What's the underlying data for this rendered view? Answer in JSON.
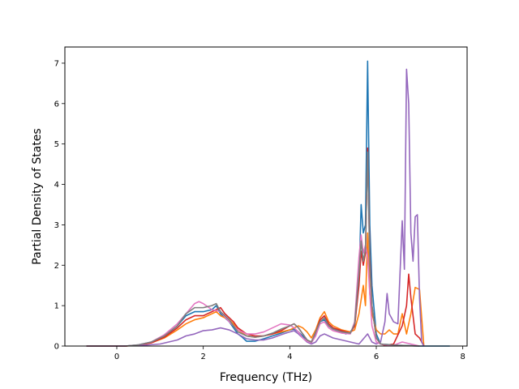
{
  "chart_data": {
    "type": "line",
    "title": "",
    "xlabel": "Frequency (THz)",
    "ylabel": "Partial Density of States",
    "xlim": [
      -1.2,
      8.1
    ],
    "ylim": [
      0,
      7.4
    ],
    "xticks": [
      0,
      2,
      4,
      6,
      8
    ],
    "yticks": [
      0,
      1,
      2,
      3,
      4,
      5,
      6,
      7
    ],
    "grid": false,
    "legend": "none",
    "series": [
      {
        "color": "#1f77b4",
        "x": [
          -0.7,
          0,
          0.2,
          0.5,
          0.8,
          1.1,
          1.4,
          1.6,
          1.8,
          2.0,
          2.2,
          2.3,
          2.4,
          2.5,
          2.6,
          2.7,
          2.8,
          2.9,
          3.0,
          3.2,
          3.4,
          3.6,
          3.8,
          4.0,
          4.1,
          4.2,
          4.3,
          4.4,
          4.5,
          4.6,
          4.7,
          4.8,
          4.9,
          5.0,
          5.1,
          5.2,
          5.3,
          5.4,
          5.5,
          5.6,
          5.65,
          5.7,
          5.75,
          5.8,
          5.85,
          5.9,
          6.0,
          6.1,
          6.5,
          7.0,
          7.7
        ],
        "y": [
          0,
          0,
          0,
          0.03,
          0.1,
          0.25,
          0.5,
          0.75,
          0.85,
          0.85,
          0.9,
          1.0,
          0.8,
          0.7,
          0.6,
          0.45,
          0.3,
          0.22,
          0.12,
          0.12,
          0.18,
          0.25,
          0.32,
          0.4,
          0.42,
          0.35,
          0.25,
          0.12,
          0.08,
          0.3,
          0.6,
          0.65,
          0.5,
          0.42,
          0.38,
          0.35,
          0.3,
          0.35,
          0.5,
          1.6,
          3.5,
          2.8,
          3.0,
          7.05,
          3.0,
          1.5,
          0.3,
          0.05,
          0.02,
          0,
          0
        ]
      },
      {
        "color": "#ff7f0e",
        "x": [
          -0.7,
          0,
          0.2,
          0.5,
          0.8,
          1.1,
          1.4,
          1.6,
          1.8,
          2.0,
          2.2,
          2.3,
          2.4,
          2.5,
          2.6,
          2.7,
          2.8,
          3.0,
          3.2,
          3.4,
          3.6,
          3.8,
          4.0,
          4.1,
          4.2,
          4.3,
          4.4,
          4.5,
          4.6,
          4.7,
          4.8,
          4.9,
          5.0,
          5.2,
          5.4,
          5.5,
          5.6,
          5.7,
          5.75,
          5.8,
          5.85,
          5.9,
          6.0,
          6.1,
          6.2,
          6.3,
          6.4,
          6.5,
          6.6,
          6.7,
          6.8,
          6.9,
          7.0,
          7.1
        ],
        "y": [
          0,
          0,
          0,
          0.02,
          0.08,
          0.2,
          0.4,
          0.55,
          0.65,
          0.7,
          0.8,
          0.85,
          0.75,
          0.7,
          0.65,
          0.55,
          0.4,
          0.25,
          0.22,
          0.25,
          0.3,
          0.35,
          0.4,
          0.45,
          0.5,
          0.45,
          0.35,
          0.2,
          0.4,
          0.7,
          0.85,
          0.6,
          0.5,
          0.4,
          0.35,
          0.4,
          0.8,
          1.5,
          1.0,
          2.8,
          1.3,
          0.8,
          0.4,
          0.3,
          0.3,
          0.4,
          0.3,
          0.3,
          0.8,
          0.3,
          0.8,
          1.45,
          1.4,
          0
        ]
      },
      {
        "color": "#d62728",
        "x": [
          -0.7,
          0,
          0.2,
          0.5,
          0.8,
          1.1,
          1.4,
          1.6,
          1.8,
          2.0,
          2.2,
          2.4,
          2.5,
          2.6,
          2.7,
          2.8,
          3.0,
          3.2,
          3.4,
          3.6,
          3.8,
          4.0,
          4.1,
          4.2,
          4.3,
          4.4,
          4.5,
          4.6,
          4.7,
          4.8,
          4.9,
          5.0,
          5.2,
          5.4,
          5.5,
          5.6,
          5.65,
          5.7,
          5.75,
          5.8,
          5.85,
          5.9,
          6.0,
          6.1,
          6.2,
          6.4,
          6.6,
          6.7,
          6.75,
          6.8,
          6.9,
          7.0,
          7.1
        ],
        "y": [
          0,
          0,
          0,
          0.02,
          0.08,
          0.22,
          0.45,
          0.65,
          0.75,
          0.75,
          0.85,
          0.95,
          0.8,
          0.7,
          0.6,
          0.45,
          0.3,
          0.25,
          0.25,
          0.3,
          0.38,
          0.5,
          0.55,
          0.45,
          0.3,
          0.15,
          0.1,
          0.35,
          0.65,
          0.75,
          0.55,
          0.45,
          0.38,
          0.32,
          0.5,
          1.5,
          2.35,
          2.0,
          2.3,
          4.9,
          2.2,
          1.0,
          0.2,
          0.05,
          0.02,
          0.05,
          0.5,
          1.0,
          1.78,
          1.2,
          0.3,
          0.2,
          0
        ]
      },
      {
        "color": "#9467bd",
        "x": [
          -0.7,
          0,
          0.5,
          1.0,
          1.4,
          1.6,
          1.8,
          2.0,
          2.2,
          2.4,
          2.6,
          2.8,
          3.0,
          3.2,
          3.4,
          3.6,
          3.8,
          4.0,
          4.1,
          4.2,
          4.3,
          4.4,
          4.5,
          4.6,
          4.7,
          4.8,
          4.9,
          5.0,
          5.2,
          5.4,
          5.6,
          5.8,
          5.9,
          6.0,
          6.1,
          6.2,
          6.25,
          6.3,
          6.4,
          6.5,
          6.6,
          6.65,
          6.7,
          6.75,
          6.8,
          6.85,
          6.9,
          6.95,
          7.0,
          7.05,
          7.1
        ],
        "y": [
          0,
          0,
          0.01,
          0.05,
          0.15,
          0.25,
          0.3,
          0.38,
          0.4,
          0.45,
          0.4,
          0.3,
          0.18,
          0.15,
          0.15,
          0.2,
          0.28,
          0.35,
          0.38,
          0.3,
          0.2,
          0.1,
          0.05,
          0.1,
          0.25,
          0.3,
          0.25,
          0.2,
          0.15,
          0.1,
          0.05,
          0.3,
          0.1,
          0.05,
          0.1,
          0.6,
          1.3,
          0.8,
          0.6,
          0.55,
          3.1,
          1.9,
          6.85,
          6.0,
          2.8,
          2.1,
          3.2,
          3.25,
          1.2,
          0.1,
          0
        ]
      },
      {
        "color": "#e377c2",
        "x": [
          -0.7,
          0,
          0.2,
          0.5,
          0.8,
          1.1,
          1.4,
          1.6,
          1.8,
          1.9,
          2.0,
          2.2,
          2.4,
          2.6,
          2.8,
          3.0,
          3.2,
          3.4,
          3.6,
          3.8,
          4.0,
          4.1,
          4.2,
          4.3,
          4.4,
          4.5,
          4.6,
          4.7,
          4.8,
          4.9,
          5.0,
          5.2,
          5.4,
          5.5,
          5.6,
          5.65,
          5.7,
          5.75,
          5.8,
          5.85,
          5.9,
          6.0,
          6.1,
          6.2,
          6.4,
          6.6,
          6.8,
          7.0
        ],
        "y": [
          0,
          0,
          0,
          0.03,
          0.1,
          0.28,
          0.55,
          0.8,
          1.05,
          1.1,
          1.05,
          0.9,
          0.85,
          0.6,
          0.4,
          0.3,
          0.3,
          0.35,
          0.45,
          0.55,
          0.52,
          0.45,
          0.35,
          0.2,
          0.12,
          0.08,
          0.25,
          0.55,
          0.6,
          0.45,
          0.38,
          0.32,
          0.3,
          0.6,
          2.2,
          2.75,
          2.3,
          2.5,
          2.2,
          1.3,
          0.5,
          0.1,
          0.05,
          0.03,
          0.02,
          0.1,
          0.05,
          0
        ]
      },
      {
        "color": "#7f7f7f",
        "x": [
          -0.7,
          0,
          0.2,
          0.5,
          0.8,
          1.1,
          1.4,
          1.6,
          1.8,
          2.0,
          2.2,
          2.3,
          2.4,
          2.5,
          2.6,
          2.7,
          2.8,
          3.0,
          3.2,
          3.4,
          3.6,
          3.8,
          4.0,
          4.1,
          4.2,
          4.3,
          4.4,
          4.5,
          4.6,
          4.7,
          4.8,
          4.9,
          5.0,
          5.2,
          5.4,
          5.5,
          5.6,
          5.65,
          5.7,
          5.75,
          5.8,
          5.85,
          5.9,
          6.0,
          6.1,
          6.5,
          7.0
        ],
        "y": [
          0,
          0,
          0,
          0.03,
          0.1,
          0.25,
          0.5,
          0.8,
          0.95,
          0.95,
          1.0,
          1.05,
          0.85,
          0.75,
          0.65,
          0.5,
          0.35,
          0.25,
          0.22,
          0.25,
          0.32,
          0.42,
          0.5,
          0.55,
          0.45,
          0.3,
          0.15,
          0.1,
          0.35,
          0.6,
          0.7,
          0.5,
          0.42,
          0.35,
          0.32,
          0.55,
          1.8,
          2.6,
          2.1,
          2.4,
          4.8,
          2.0,
          1.0,
          0.2,
          0.05,
          0.02,
          0
        ]
      }
    ]
  }
}
